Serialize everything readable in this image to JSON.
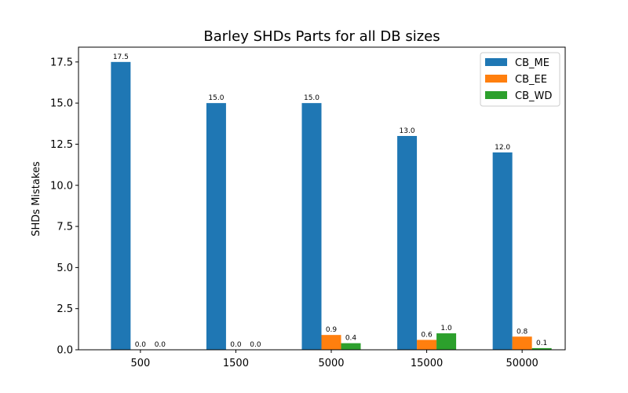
{
  "chart_data": {
    "type": "bar",
    "title": "Barley SHDs Parts for all DB sizes",
    "xlabel": "",
    "ylabel": "SHDs Mistakes",
    "categories": [
      "500",
      "1500",
      "5000",
      "15000",
      "50000"
    ],
    "ylim": [
      0,
      18.4
    ],
    "yticks": [
      "0.0",
      "2.5",
      "5.0",
      "7.5",
      "10.0",
      "12.5",
      "15.0",
      "17.5"
    ],
    "legend_position": "top-right",
    "grid": false,
    "series": [
      {
        "name": "CB_ME",
        "color": "#1f77b4",
        "values": [
          17.5,
          15.0,
          15.0,
          13.0,
          12.0
        ],
        "labels": [
          "17.5",
          "15.0",
          "15.0",
          "13.0",
          "12.0"
        ]
      },
      {
        "name": "CB_EE",
        "color": "#ff7f0e",
        "values": [
          0.0,
          0.0,
          0.9,
          0.6,
          0.8
        ],
        "labels": [
          "0.0",
          "0.0",
          "0.9",
          "0.6",
          "0.8"
        ]
      },
      {
        "name": "CB_WD",
        "color": "#2ca02c",
        "values": [
          0.0,
          0.0,
          0.4,
          1.0,
          0.1
        ],
        "labels": [
          "0.0",
          "0.0",
          "0.4",
          "1.0",
          "0.1"
        ]
      }
    ]
  }
}
